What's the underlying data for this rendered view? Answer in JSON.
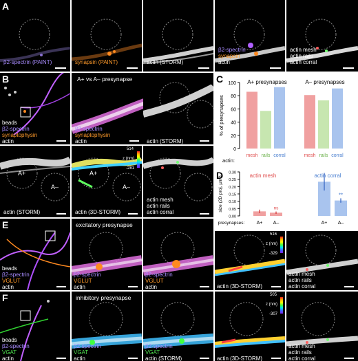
{
  "panels": {
    "A": {
      "label": "A",
      "labels": {
        "a1": "β2-spectrin (PAINT)",
        "a2": "synapsin (PAINT)",
        "a3": "actin (STORM)",
        "a4_1": "β2-spectrin",
        "a4_2": "synapsin",
        "a4_3": "actin",
        "a5_1": "actin mesh",
        "a5_2": "actin rails",
        "a5_3": "actin corral"
      }
    },
    "B": {
      "label": "B",
      "title": "A+ vs A– presynapse",
      "labels": {
        "b1_1": "beads",
        "b1_2": "β2-spectrin",
        "b1_3": "synaptophysin",
        "b1_4": "actin",
        "b2_1": "β2-spectrin",
        "b2_2": "synaptophysin",
        "b2_3": "actin",
        "b3_1": "actin (STORM)",
        "b4_1": "actin (STORM)",
        "b5_1": "actin (3D-STORM)",
        "b6_1": "actin mesh",
        "b6_2": "actin rails",
        "b6_3": "actin corral",
        "aplus": "A+",
        "aminus": "A–",
        "cb_top": "514",
        "cb_unit": "z (nm)",
        "cb_bot": "-281"
      }
    },
    "C": {
      "label": "C",
      "yaxis_label": "% of presynapses",
      "row_label": "actin:",
      "ticks": [
        "0",
        "20",
        "40",
        "60",
        "80",
        "100"
      ],
      "chart_data": {
        "type": "bar",
        "groups": [
          {
            "name": "A+ presynapses",
            "categories": [
              "mesh",
              "rails",
              "corral"
            ],
            "values": [
              86,
              57,
              93
            ]
          },
          {
            "name": "A– presynapses",
            "categories": [
              "mesh",
              "rails",
              "corral"
            ],
            "values": [
              81,
              73,
              91
            ]
          }
        ],
        "ylim": [
          0,
          100
        ],
        "colors": [
          "#f0a0a0",
          "#c7e6b0",
          "#a9c4ee"
        ]
      }
    },
    "D": {
      "label": "D",
      "yaxis_label": "size (2D proj, µm²)",
      "row_label": "presynapses:",
      "group1_title": "actin mesh",
      "group2_title": "actin corral",
      "ticks": [
        "0.00",
        "0.05",
        "0.10",
        "0.15",
        "0.20",
        "0.25",
        "0.30"
      ],
      "sig_ns": "ns",
      "sig_star": "**",
      "chart_data": {
        "type": "bar",
        "categories": [
          "A+",
          "A–",
          "A+",
          "A–"
        ],
        "values": [
          0.031,
          0.022,
          0.233,
          0.105
        ],
        "errors": [
          0.012,
          0.008,
          0.06,
          0.015
        ],
        "ylim": [
          0,
          0.3
        ],
        "colors": [
          "#f0a0a0",
          "#f0a0a0",
          "#a9c4ee",
          "#a9c4ee"
        ]
      }
    },
    "E": {
      "label": "E",
      "title": "excitatory presynapse",
      "labels": {
        "e1_1": "beads",
        "e1_2": "β2-spectrin",
        "e1_3": "VGLUT",
        "e1_4": "actin",
        "e2_1": "β2-spectrin",
        "e2_2": "VGLUT",
        "e2_3": "actin",
        "e3_1": "β2-spectrin",
        "e3_2": "VGLUT",
        "e3_3": "actin",
        "e4_1": "actin (3D-STORM)",
        "e5_1": "actin mesh",
        "e5_2": "actin rails",
        "e5_3": "actin corral",
        "cb_top": "516",
        "cb_unit": "z (nm)",
        "cb_bot": "-329"
      }
    },
    "F": {
      "label": "F",
      "title": "inhibitory presynapse",
      "labels": {
        "f1_1": "beads",
        "f1_2": "β2-spectrin",
        "f1_3": "VGAT",
        "f1_4": "actin",
        "f2_1": "β2-spectrin",
        "f2_2": "VGAT",
        "f2_3": "actin",
        "f3_1": "β2-spectrin",
        "f3_2": "VGAT",
        "f3_3": "actin (STORM)",
        "f4_1": "actin (3D-STORM)",
        "f5_1": "actin mesh",
        "f5_2": "actin rails",
        "f5_3": "actin corral",
        "cb_top": "505",
        "cb_unit": "z (nm)",
        "cb_bot": "-307"
      }
    }
  }
}
